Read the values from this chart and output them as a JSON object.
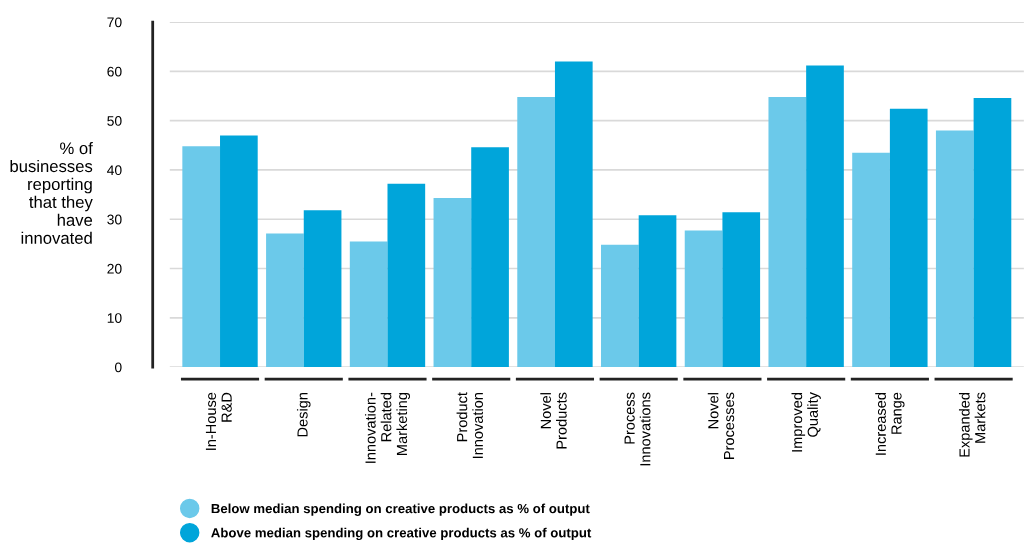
{
  "chart_data": {
    "type": "bar",
    "ylabel": "% of\nbusinesses\nreporting\nthat they\nhave\ninnovated",
    "categories": [
      "In-House\nR&D",
      "Design",
      "Innovation-\nRelated\nMarketing",
      "Product\nInnovation",
      "Novel\nProducts",
      "Process\nInnovations",
      "Novel\nProcesses",
      "Improved\nQuality",
      "Increased\nRange",
      "Expanded\nMarkets"
    ],
    "series": [
      {
        "name": "Below median spending on creative products as % of output",
        "color": "#6bc9ea",
        "values": [
          44.8,
          27.1,
          25.5,
          34.3,
          54.8,
          24.8,
          27.7,
          54.8,
          43.5,
          48.0
        ]
      },
      {
        "name": "Above median spending on creative products as % of output",
        "color": "#00a5da",
        "values": [
          47.0,
          31.8,
          37.2,
          44.6,
          62.0,
          30.8,
          31.4,
          61.2,
          52.4,
          54.6
        ]
      }
    ],
    "ylim": [
      0,
      70
    ],
    "yticks": [
      0,
      10,
      20,
      30,
      40,
      50,
      60,
      70
    ],
    "grid": "y",
    "legend": "bottom left"
  }
}
